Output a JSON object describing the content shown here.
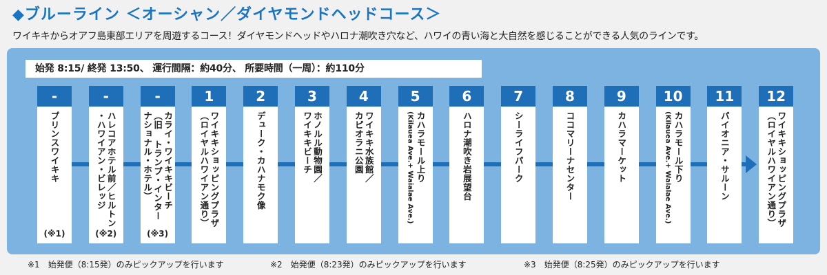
{
  "title": "◆ブルーライン ＜オーシャン／ダイヤモンドヘッドコース＞",
  "subtitle": "ワイキキからオアフ島東部エリアを周遊するコース！ダイヤモンドヘッドやハロナ潮吹き穴など、ハワイの青い海と大自然を感じることができる人気のラインです。",
  "schedule": "始発 8:15/ 終発 13:50、 運行間隔：約40分、 所要時間（一周）：約110分",
  "colors": {
    "primary": "#1f6fb8",
    "panel": "#7cb3e0",
    "title": "#1a74bf"
  },
  "stops": [
    {
      "num": "-",
      "lines": [
        "プリンスワイキキ"
      ],
      "note": "(※1)"
    },
    {
      "num": "-",
      "lines": [
        "ハレコアホテル前／ヒルトン",
        "・ハワイアン・ビレッジ"
      ],
      "note": "(※2)"
    },
    {
      "num": "-",
      "lines": [
        "カライ・ワイキキビーチ",
        "（旧 トランプ・インター",
        "ナショナル・ホテル）"
      ],
      "note": "(※3)"
    },
    {
      "num": "1",
      "lines": [
        "ワイキキショッピングプラザ",
        "（ロイヤルハワイアン通り）"
      ],
      "note": ""
    },
    {
      "num": "2",
      "lines": [
        "デューク・カハナモク像"
      ],
      "note": ""
    },
    {
      "num": "3",
      "lines": [
        "ホノルル動物園／",
        "ワイキキビーチ"
      ],
      "note": ""
    },
    {
      "num": "4",
      "lines": [
        "ワイキキ水族館／",
        "カピオラニ公園"
      ],
      "note": ""
    },
    {
      "num": "5",
      "lines": [
        "カハラモール上り",
        "(Kilauea Ave.+ Waialae Ave.)"
      ],
      "note": ""
    },
    {
      "num": "6",
      "lines": [
        "ハロナ潮吹き岩展望台"
      ],
      "note": ""
    },
    {
      "num": "7",
      "lines": [
        "シーライフパーク"
      ],
      "note": ""
    },
    {
      "num": "8",
      "lines": [
        "ココマリーナセンター"
      ],
      "note": ""
    },
    {
      "num": "9",
      "lines": [
        "カハラマーケット"
      ],
      "note": ""
    },
    {
      "num": "10",
      "lines": [
        "カハラモール下り",
        "(Kilauea Ave.+ Waialae Ave.)"
      ],
      "note": ""
    },
    {
      "num": "11",
      "lines": [
        "パイオニア・サルーン"
      ],
      "note": ""
    },
    {
      "num": "12",
      "lines": [
        "ワイキキショッピングプラザ",
        "（ロイヤルハワイアン通り）"
      ],
      "note": ""
    }
  ],
  "footnotes": [
    "※1　始発便（8:15発）のみピックアップを行います",
    "※2　始発便（8:23発）のみピックアップを行います",
    "※3　始発便（8:25発）のみピックアップを行います"
  ]
}
